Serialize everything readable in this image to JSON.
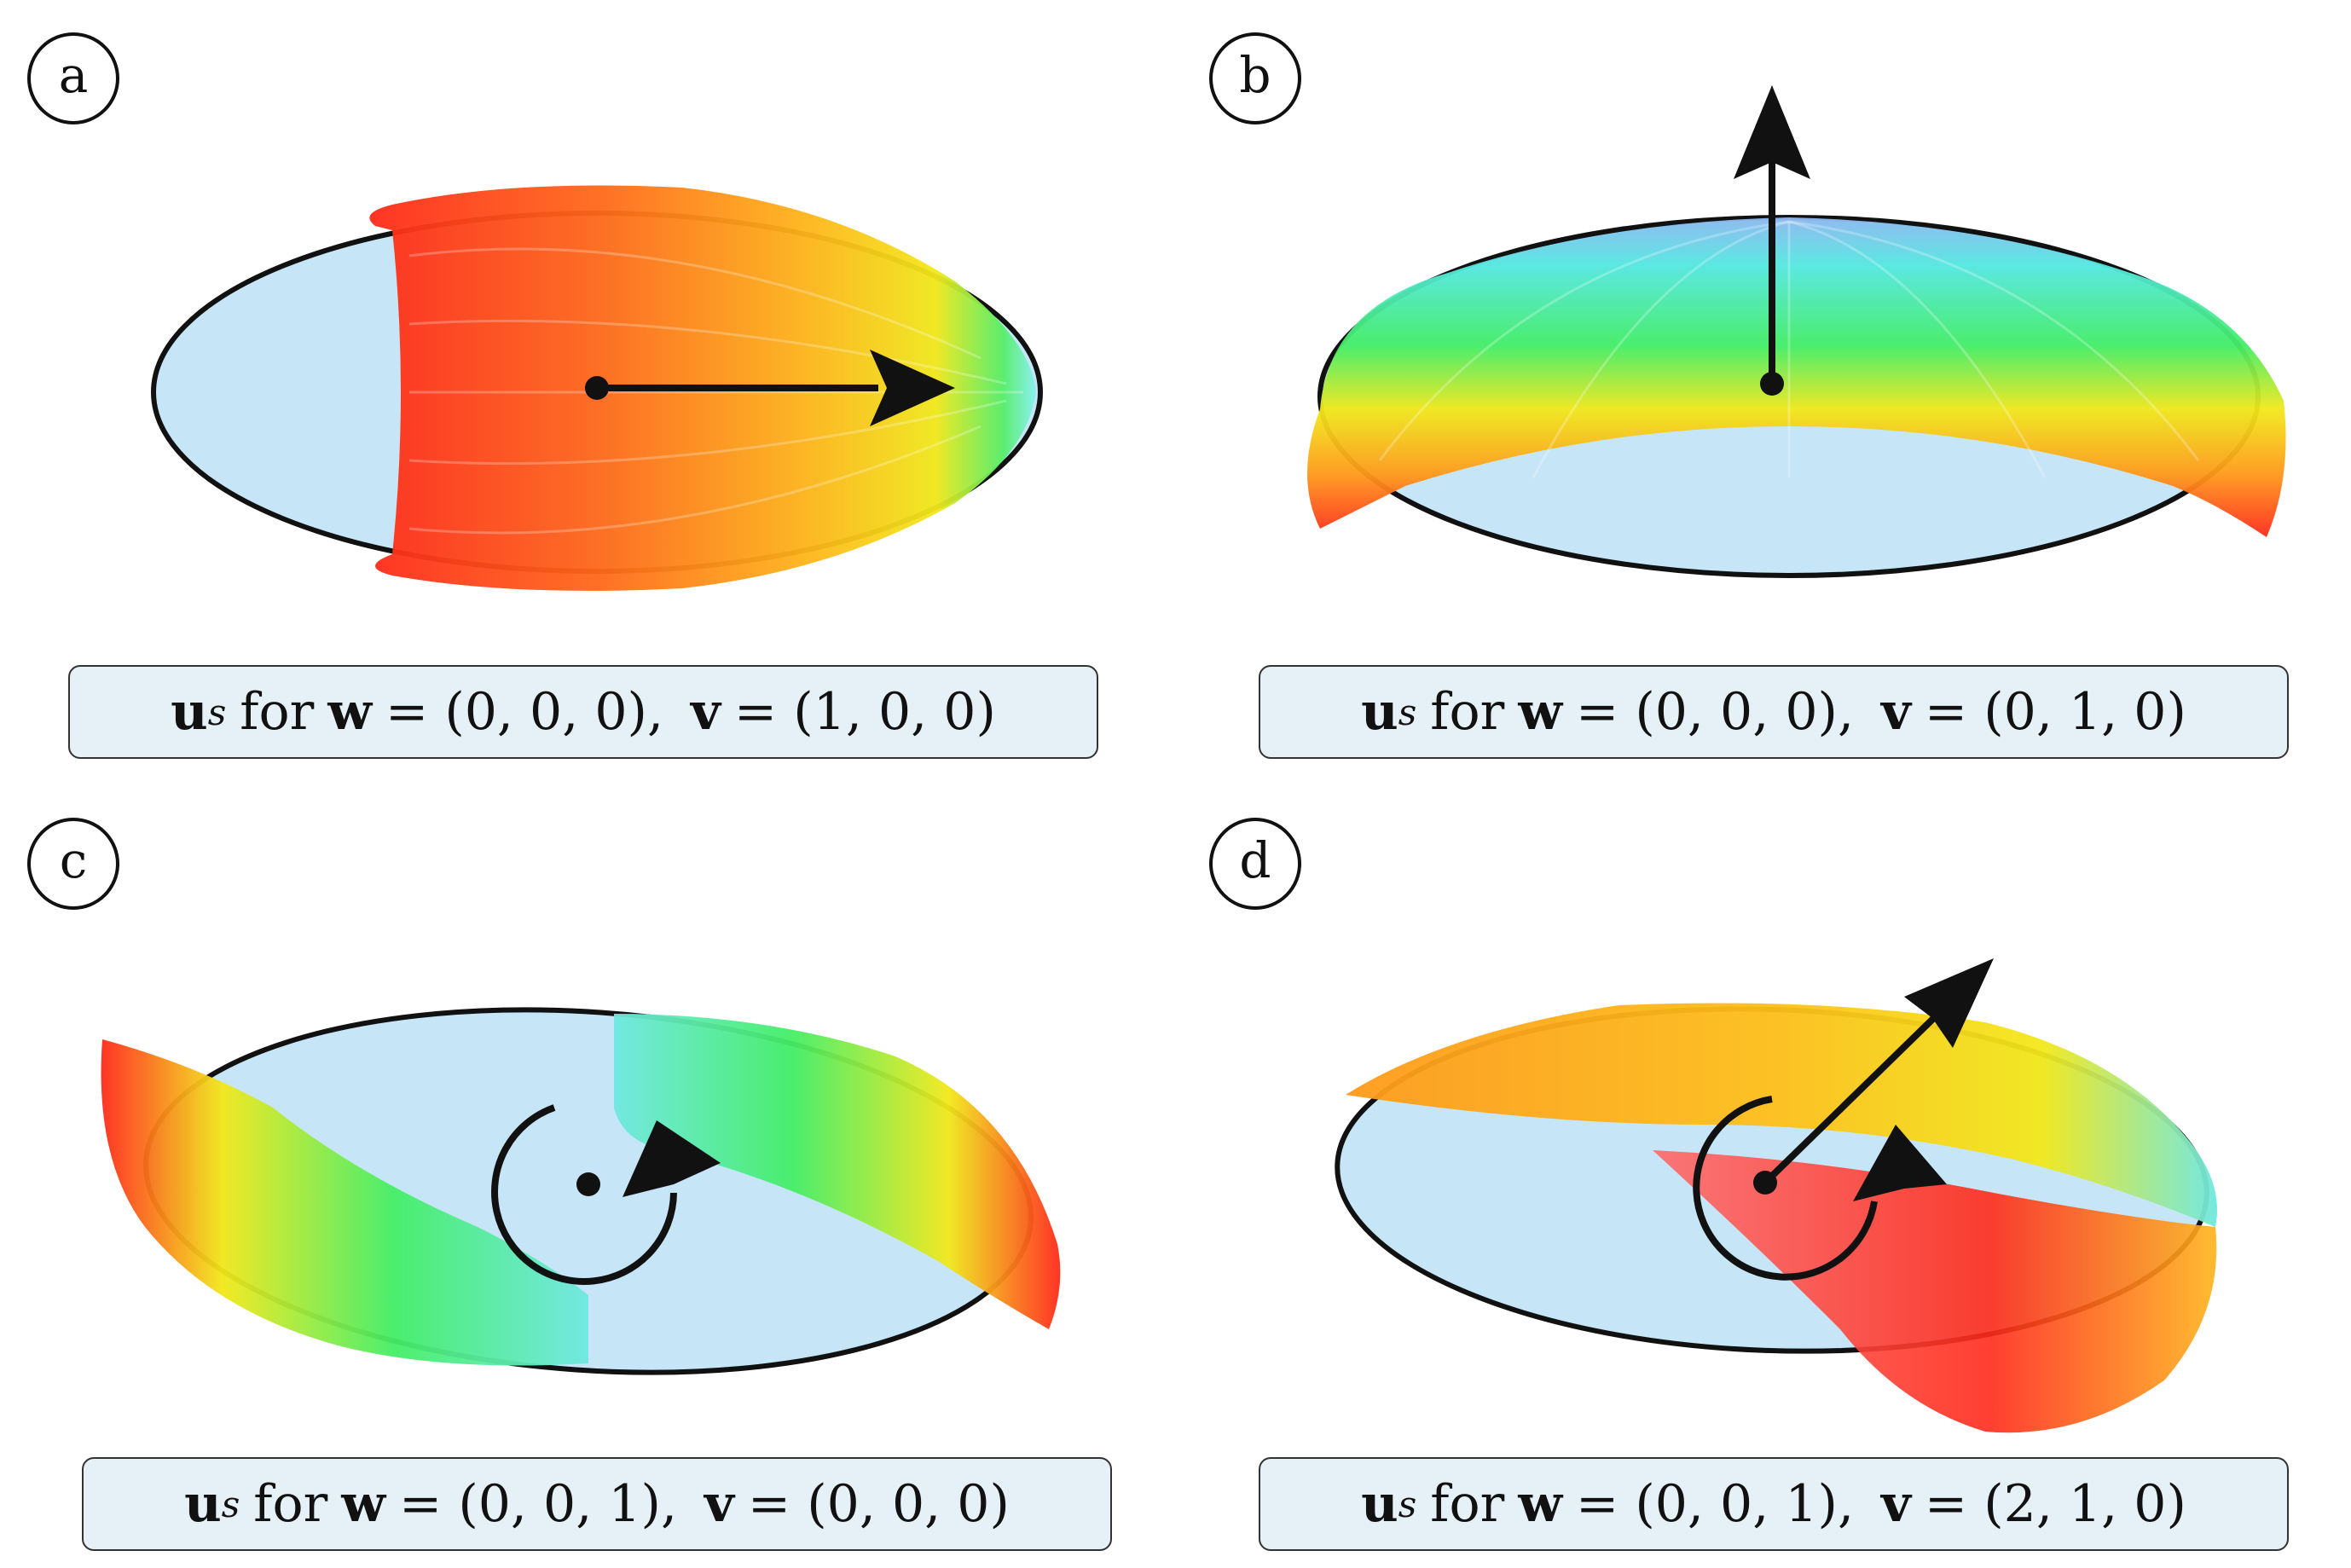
{
  "panels": [
    {
      "label": "a",
      "caption": {
        "u": "u",
        "s": "s",
        "for": "for",
        "w": "w",
        "w_val": "= (0, 0, 0),",
        "v": "v",
        "v_val": "= (1, 0, 0)"
      }
    },
    {
      "label": "b",
      "caption": {
        "u": "u",
        "s": "s",
        "for": "for",
        "w": "w",
        "w_val": "= (0, 0, 0),",
        "v": "v",
        "v_val": "= (0, 1, 0)"
      }
    },
    {
      "label": "c",
      "caption": {
        "u": "u",
        "s": "s",
        "for": "for",
        "w": "w",
        "w_val": "= (0, 0, 1),",
        "v": "v",
        "v_val": "= (0, 0, 0)"
      }
    },
    {
      "label": "d",
      "caption": {
        "u": "u",
        "s": "s",
        "for": "for",
        "w": "w",
        "w_val": "= (0, 0, 1),",
        "v": "v",
        "v_val": "= (2, 1, 0)"
      }
    }
  ],
  "colors": {
    "ellipse_fill": "#c6e6f8",
    "caption_fill": "#e6f1f7",
    "red": "#ff1a1a",
    "orange": "#ff7a1a",
    "yellow": "#f5e61a",
    "green": "#33ee66",
    "cyan": "#6fe8e0"
  }
}
